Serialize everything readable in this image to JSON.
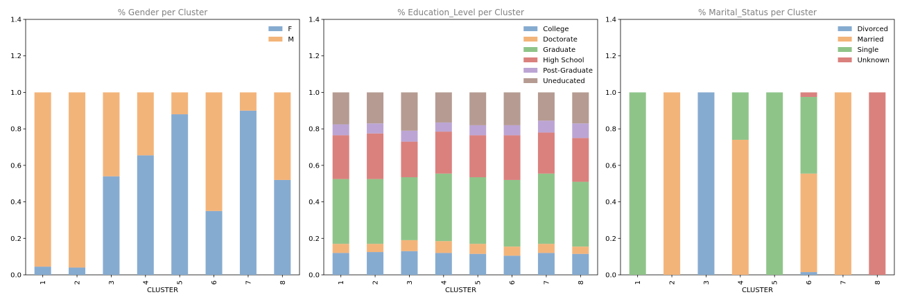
{
  "chart_data": [
    {
      "type": "bar",
      "stacked": true,
      "title": "% Gender per Cluster",
      "xlabel": "CLUSTER",
      "ylabel": "",
      "ylim": [
        0,
        1.4
      ],
      "yticks": [
        "0.0",
        "0.2",
        "0.4",
        "0.6",
        "0.8",
        "1.0",
        "1.2",
        "1.4"
      ],
      "legend": "top-right",
      "categories": [
        "1",
        "2",
        "3",
        "4",
        "5",
        "6",
        "7",
        "8"
      ],
      "series": [
        {
          "name": "F",
          "color": "#86abd0",
          "values": [
            0.045,
            0.04,
            0.54,
            0.655,
            0.88,
            0.35,
            0.9,
            0.52
          ]
        },
        {
          "name": "M",
          "color": "#f3b47a",
          "values": [
            0.955,
            0.96,
            0.46,
            0.345,
            0.12,
            0.65,
            0.1,
            0.48
          ]
        }
      ]
    },
    {
      "type": "bar",
      "stacked": true,
      "title": "% Education_Level per Cluster",
      "xlabel": "CLUSTER",
      "ylabel": "",
      "ylim": [
        0,
        1.4
      ],
      "yticks": [
        "0.0",
        "0.2",
        "0.4",
        "0.6",
        "0.8",
        "1.0",
        "1.2",
        "1.4"
      ],
      "legend": "top-right",
      "categories": [
        "1",
        "2",
        "3",
        "4",
        "5",
        "6",
        "7",
        "8"
      ],
      "series": [
        {
          "name": "College",
          "color": "#86abd0",
          "values": [
            0.12,
            0.125,
            0.13,
            0.12,
            0.115,
            0.105,
            0.12,
            0.115
          ]
        },
        {
          "name": "Doctorate",
          "color": "#f3b47a",
          "values": [
            0.05,
            0.045,
            0.06,
            0.065,
            0.055,
            0.05,
            0.05,
            0.04
          ]
        },
        {
          "name": "Graduate",
          "color": "#8fc489",
          "values": [
            0.355,
            0.355,
            0.345,
            0.37,
            0.365,
            0.365,
            0.385,
            0.355
          ]
        },
        {
          "name": "High School",
          "color": "#da817e",
          "values": [
            0.24,
            0.25,
            0.195,
            0.23,
            0.23,
            0.245,
            0.225,
            0.24
          ]
        },
        {
          "name": "Post-Graduate",
          "color": "#bca5d4",
          "values": [
            0.06,
            0.055,
            0.06,
            0.05,
            0.055,
            0.055,
            0.065,
            0.08
          ]
        },
        {
          "name": "Uneducated",
          "color": "#b59b92",
          "values": [
            0.175,
            0.17,
            0.21,
            0.165,
            0.18,
            0.18,
            0.155,
            0.17
          ]
        }
      ]
    },
    {
      "type": "bar",
      "stacked": true,
      "title": "% Marital_Status per Cluster",
      "xlabel": "CLUSTER",
      "ylabel": "",
      "ylim": [
        0,
        1.4
      ],
      "yticks": [
        "0.0",
        "0.2",
        "0.4",
        "0.6",
        "0.8",
        "1.0",
        "1.2",
        "1.4"
      ],
      "legend": "top-right",
      "categories": [
        "1",
        "2",
        "3",
        "4",
        "5",
        "6",
        "7",
        "8"
      ],
      "series": [
        {
          "name": "Divorced",
          "color": "#86abd0",
          "values": [
            0,
            0,
            1.0,
            0,
            0,
            0.015,
            0,
            0
          ]
        },
        {
          "name": "Married",
          "color": "#f3b47a",
          "values": [
            0,
            1.0,
            0,
            0.74,
            0,
            0.54,
            1.0,
            0
          ]
        },
        {
          "name": "Single",
          "color": "#8fc489",
          "values": [
            1.0,
            0,
            0,
            0.26,
            1.0,
            0.42,
            0,
            0
          ]
        },
        {
          "name": "Unknown",
          "color": "#da817e",
          "values": [
            0,
            0,
            0,
            0,
            0,
            0.025,
            0,
            1.0
          ]
        }
      ]
    }
  ]
}
